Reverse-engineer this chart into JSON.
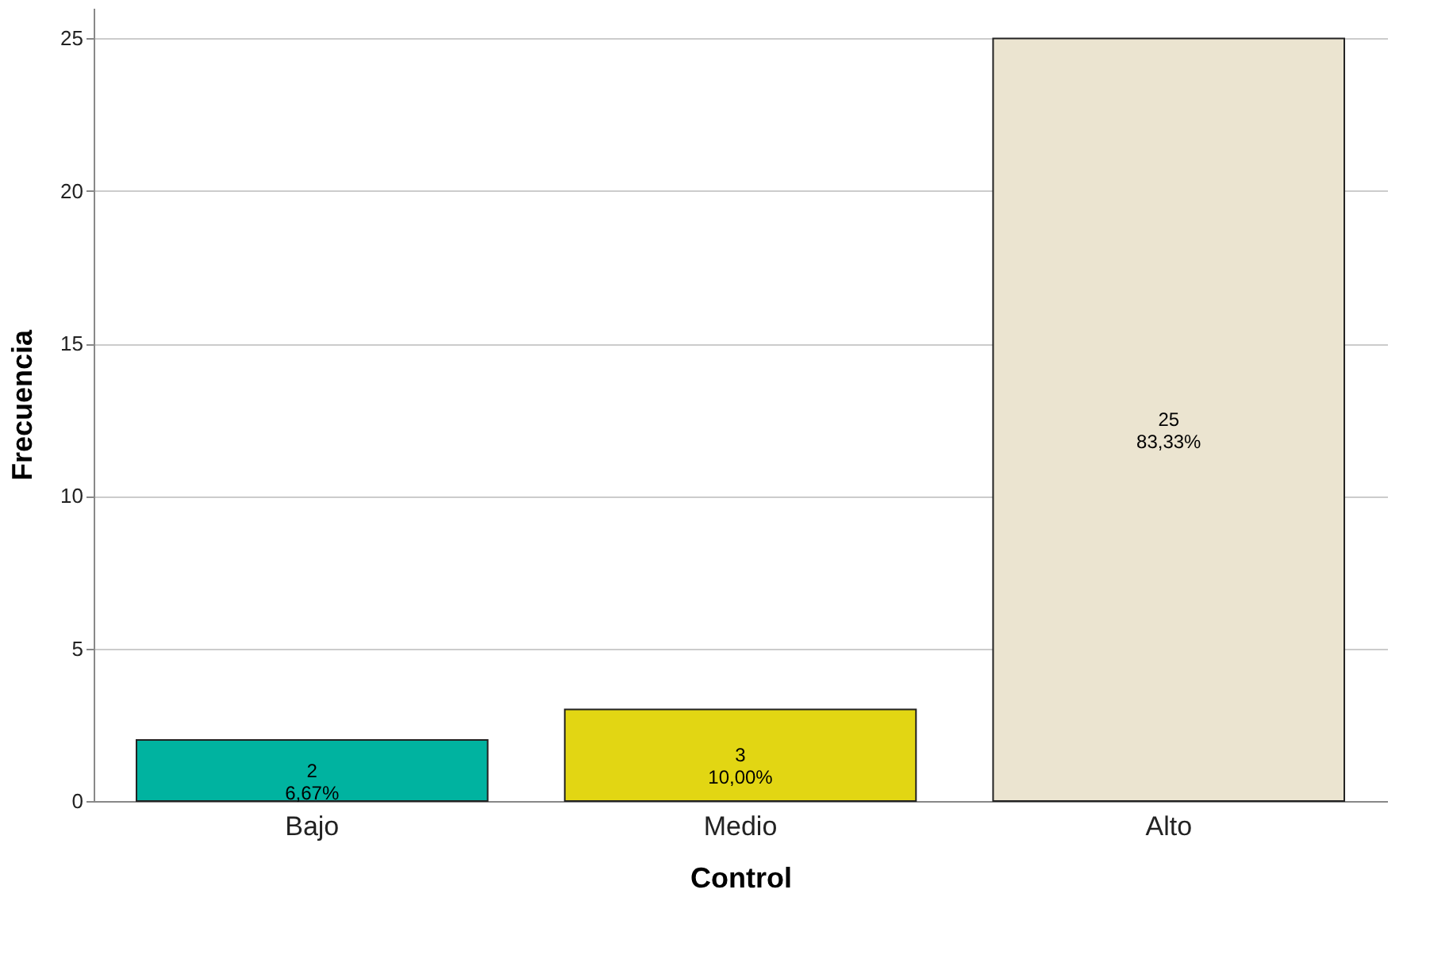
{
  "chart_data": {
    "type": "bar",
    "xlabel": "Control",
    "ylabel": "Frecuencia",
    "categories": [
      "Bajo",
      "Medio",
      "Alto"
    ],
    "values": [
      2,
      3,
      25
    ],
    "colors": [
      "#00b3a0",
      "#e2d613",
      "#ebe4d0"
    ],
    "value_labels": [
      "2\n6,67%",
      "3\n10,00%",
      "25\n83,33%"
    ],
    "ylim": [
      0,
      26
    ],
    "yticks": [
      0,
      5,
      10,
      15,
      20,
      25
    ],
    "grid": "y",
    "legend": false
  }
}
